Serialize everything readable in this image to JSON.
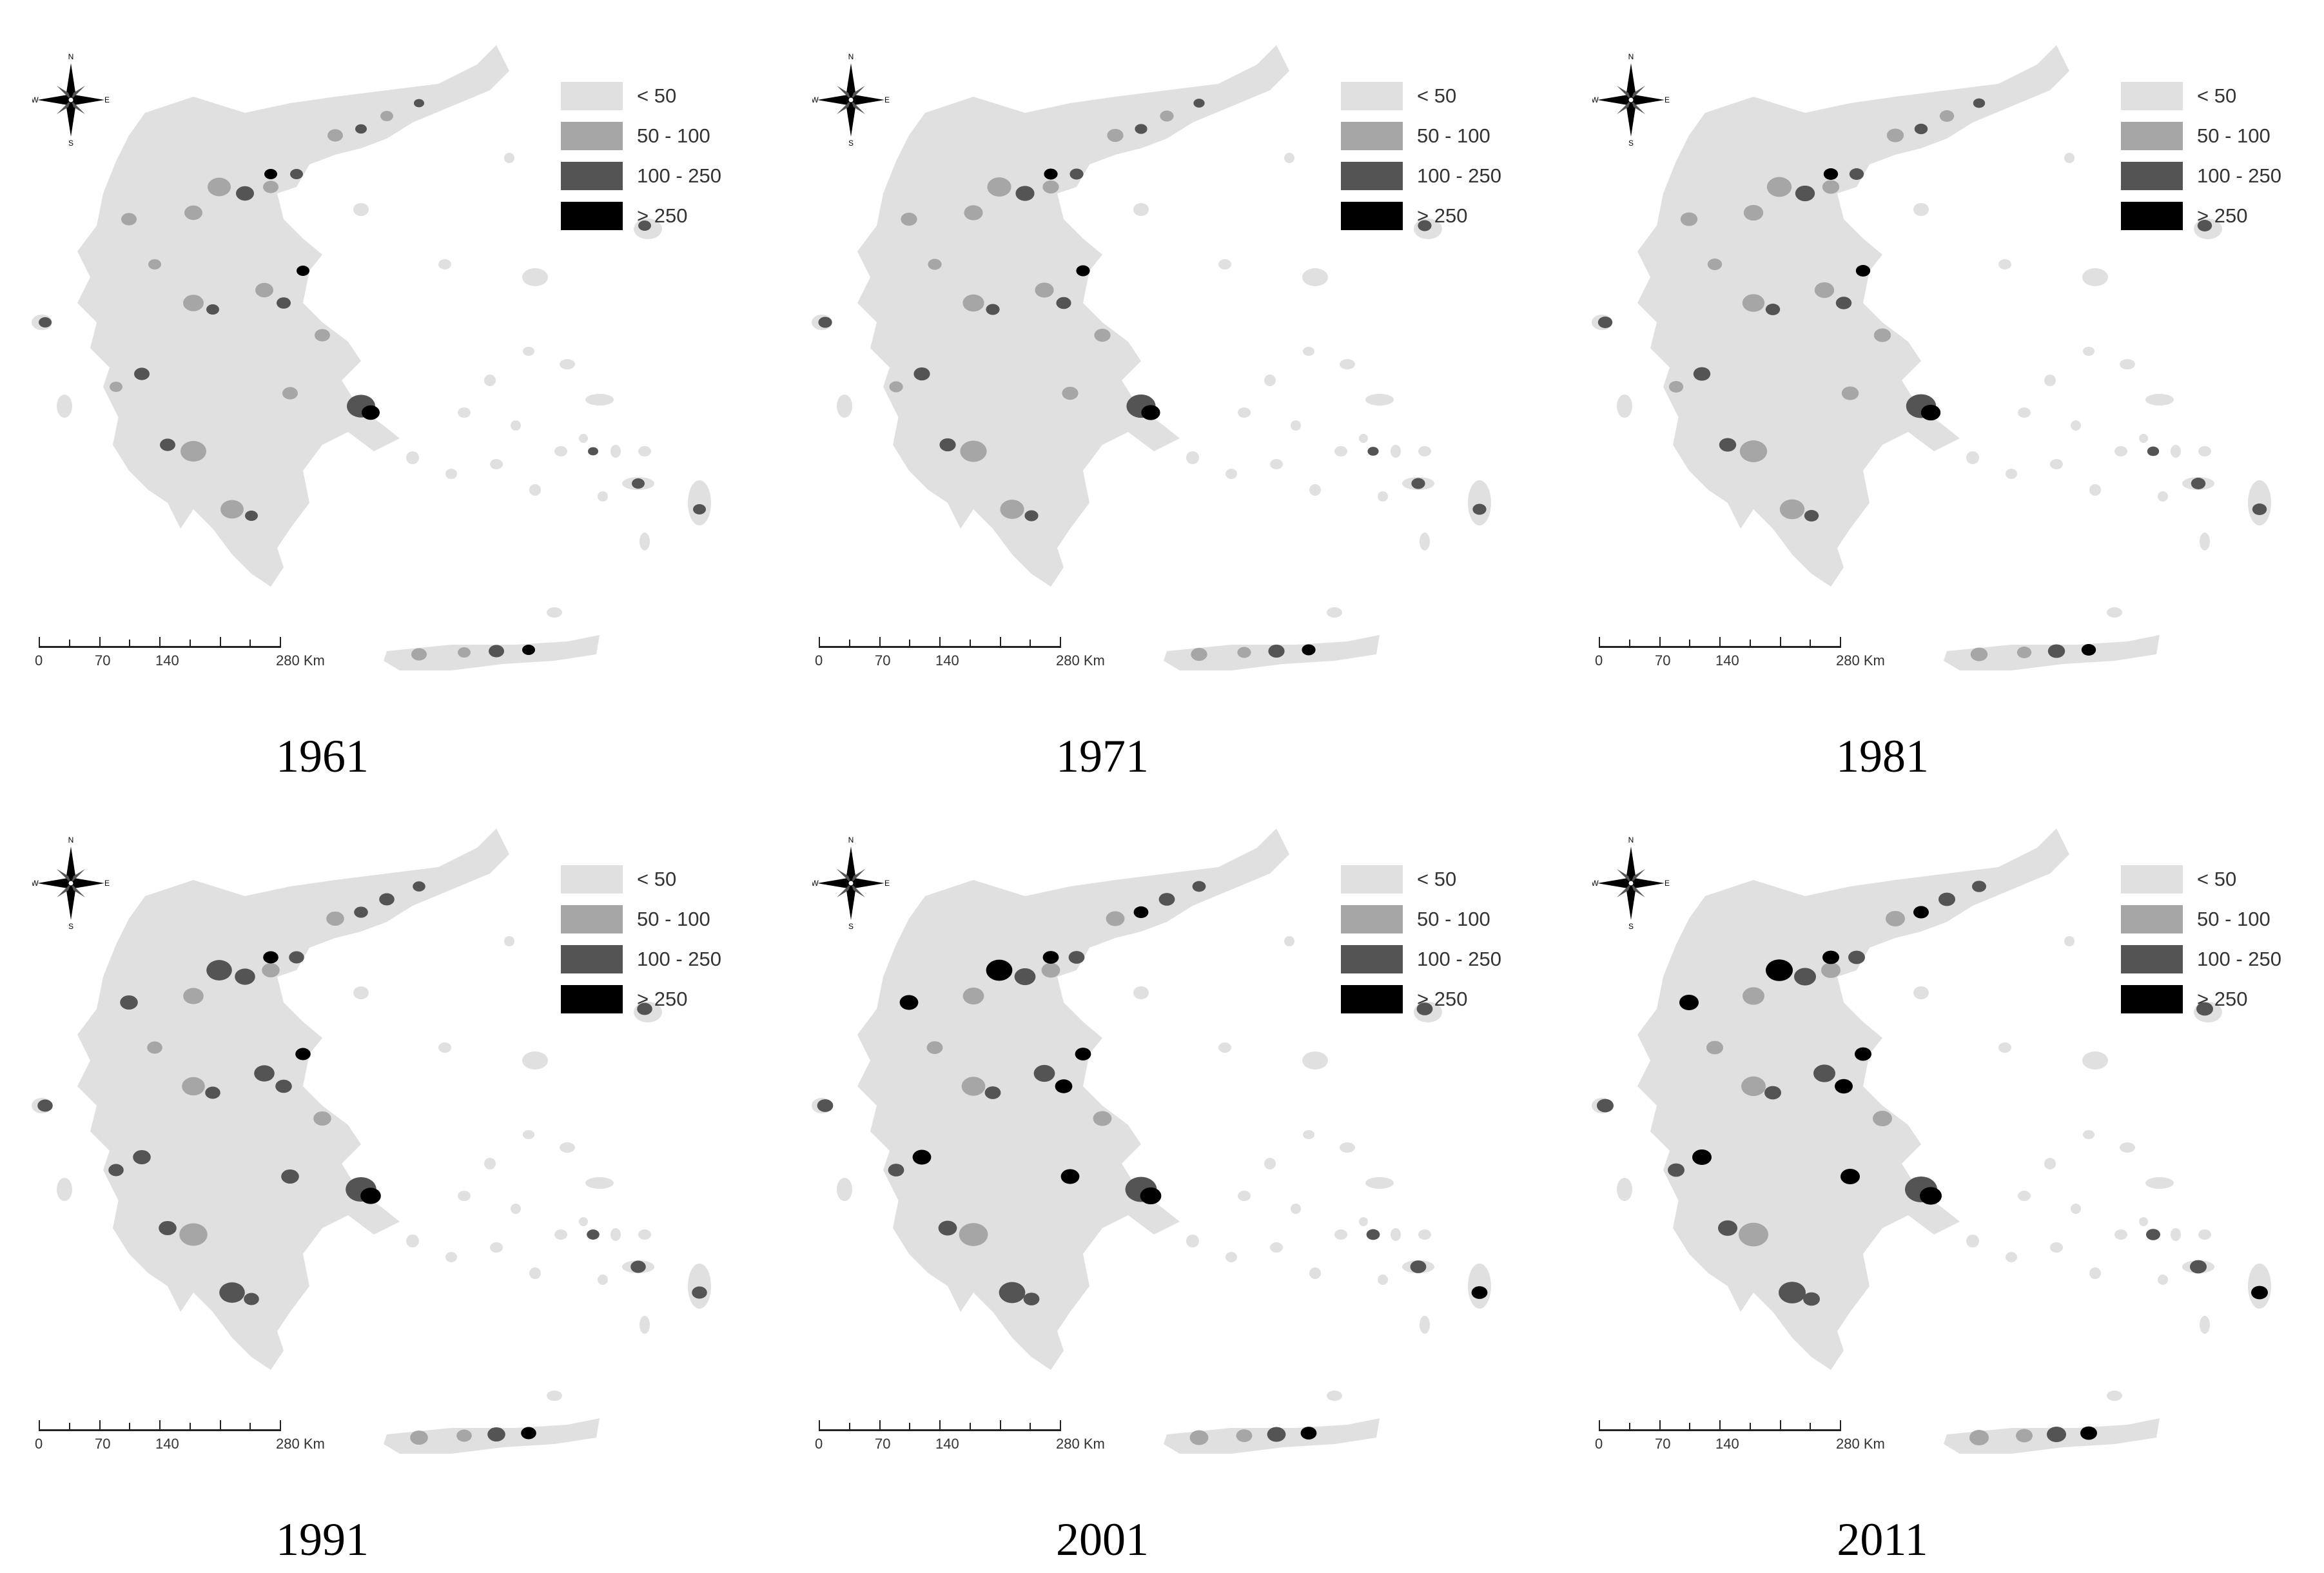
{
  "colors": {
    "lt50": "#e0e0e0",
    "50to100": "#a6a6a6",
    "100to250": "#545454",
    "gt250": "#000000",
    "background": "#ffffff"
  },
  "legend": [
    {
      "label": "< 50",
      "color_key": "lt50"
    },
    {
      "label": "50 - 100",
      "color_key": "50to100"
    },
    {
      "label": "100 - 250",
      "color_key": "100to250"
    },
    {
      "label": "> 250",
      "color_key": "gt250"
    }
  ],
  "compass": {
    "n": "N",
    "s": "S",
    "e": "E",
    "w": "W",
    "icon": "compass-rose-icon"
  },
  "scale_bar": {
    "ticks": [
      "0",
      "70",
      "140",
      "280 Km"
    ]
  },
  "panels": [
    {
      "year": "1961"
    },
    {
      "year": "1971"
    },
    {
      "year": "1981"
    },
    {
      "year": "1991"
    },
    {
      "year": "2001"
    },
    {
      "year": "2011"
    }
  ]
}
